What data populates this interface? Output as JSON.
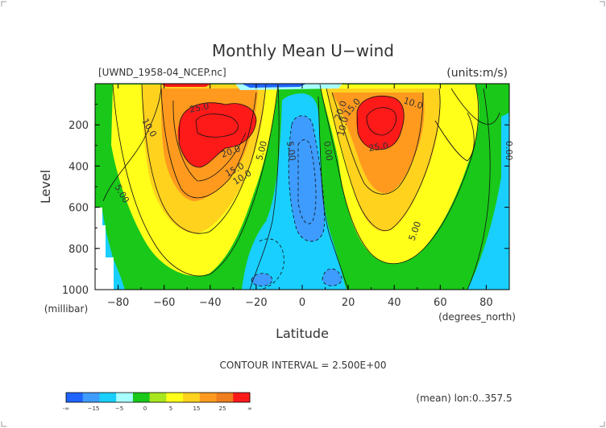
{
  "chart_data": {
    "type": "contour",
    "title": "Monthly Mean U−wind",
    "file_label": "[UWND_1958-04_NCEP.nc]",
    "units_label": "(units:m/s)",
    "xlabel": "Latitude",
    "x_unit": "(degrees_north)",
    "ylabel": "Level",
    "y_unit": "(millibar)",
    "xlim": [
      -90,
      90
    ],
    "ylim": [
      1000,
      0
    ],
    "x_ticks": [
      "−80",
      "−60",
      "−40",
      "−20",
      "0",
      "20",
      "40",
      "60",
      "80"
    ],
    "y_ticks": [
      "200",
      "400",
      "600",
      "800",
      "1000"
    ],
    "contour_interval": "CONTOUR INTERVAL = 2.500E+00",
    "mean_note": "(mean) lon:0..357.5",
    "colorbar": {
      "labels": [
        "-∞",
        "−15",
        "−5",
        "0",
        "5",
        "15",
        "25",
        "∞"
      ],
      "colors": [
        "#1f64ff",
        "#3f9cff",
        "#19cfff",
        "#a8ffff",
        "#19c819",
        "#a8e61e",
        "#ffff1a",
        "#ffd21e",
        "#ff9a1e",
        "#ee7d1e",
        "#ff1a1a"
      ]
    },
    "contour_labels": [
      "10.0",
      "25.0",
      "20.0",
      "15.0",
      "10.0",
      "5.00",
      "5.00",
      "5.00",
      "0.00",
      "15.0",
      "10.0",
      "20.0",
      "25.0",
      "10.0",
      "0.00",
      "5.00"
    ],
    "jets": [
      {
        "name": "southern_jet",
        "lat": -35,
        "level": 200,
        "max": 27.5
      },
      {
        "name": "northern_jet",
        "lat": 30,
        "level": 200,
        "max": 27.5
      }
    ],
    "easterlies": [
      {
        "lat": 0,
        "level_range": [
          150,
          750
        ],
        "min": -7.5
      },
      {
        "lat": -18,
        "level_range": [
          920,
          1000
        ],
        "min": -5
      },
      {
        "lat": 12,
        "level_range": [
          900,
          1000
        ],
        "min": -5
      }
    ]
  }
}
